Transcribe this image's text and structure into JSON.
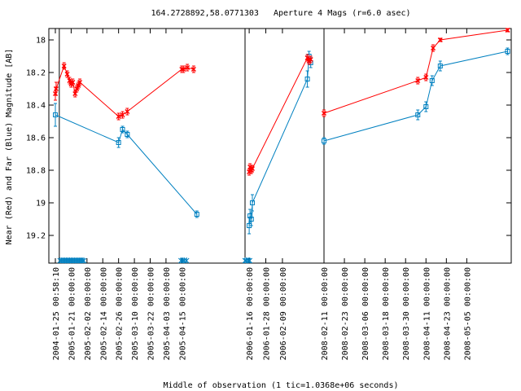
{
  "chart_data": {
    "type": "line",
    "title": "164.2728892,58.0771303   Aperture 4 Mags (r=6.0 asec)",
    "xlabel": "Middle of observation (1 tic=1.0368e+06 seconds)",
    "ylabel": "Near (Red) and Far (Blue) Magnitude [AB]",
    "y_inverted": true,
    "ylim": [
      19.37,
      17.93
    ],
    "y_ticks": [
      18,
      18.2,
      18.4,
      18.6,
      18.8,
      19,
      19.2
    ],
    "grid": false,
    "colors": {
      "near": "#ff0000",
      "far": "#0080c0",
      "frame": "#000000"
    },
    "panels": [
      {
        "xlim": [
          0,
          12
        ],
        "ticks": [
          {
            "x": 0,
            "label": "2004-01-25 00:58:10"
          },
          {
            "x": 1,
            "label": "2005-01-21 00:00:00"
          },
          {
            "x": 2,
            "label": "2005-02-02 00:00:00"
          },
          {
            "x": 3,
            "label": "2005-02-14 00:00:00"
          },
          {
            "x": 4,
            "label": "2005-02-26 00:00:00"
          },
          {
            "x": 5,
            "label": "2005-03-10 00:00:00"
          },
          {
            "x": 6,
            "label": "2005-03-22 00:00:00"
          },
          {
            "x": 7,
            "label": "2005-04-03 00:00:00"
          },
          {
            "x": 8,
            "label": "2005-04-15 00:00:00"
          }
        ],
        "vline": 0.25,
        "near": [
          {
            "x": 0.0,
            "y": 18.33,
            "err": 0.04
          },
          {
            "x": 0.05,
            "y": 18.3,
            "err": 0.04
          },
          {
            "x": 0.55,
            "y": 18.16,
            "err": 0.02
          },
          {
            "x": 0.75,
            "y": 18.21,
            "err": 0.02
          },
          {
            "x": 0.9,
            "y": 18.25,
            "err": 0.02
          },
          {
            "x": 1.0,
            "y": 18.27,
            "err": 0.02
          },
          {
            "x": 1.1,
            "y": 18.26,
            "err": 0.02
          },
          {
            "x": 1.25,
            "y": 18.33,
            "err": 0.02
          },
          {
            "x": 1.35,
            "y": 18.3,
            "err": 0.02
          },
          {
            "x": 1.45,
            "y": 18.28,
            "err": 0.02
          },
          {
            "x": 1.55,
            "y": 18.26,
            "err": 0.02
          },
          {
            "x": 4.0,
            "y": 18.47,
            "err": 0.02
          },
          {
            "x": 4.25,
            "y": 18.46,
            "err": 0.02
          },
          {
            "x": 4.55,
            "y": 18.44,
            "err": 0.02
          },
          {
            "x": 8.0,
            "y": 18.18,
            "err": 0.02
          },
          {
            "x": 8.1,
            "y": 18.18,
            "err": 0.02
          },
          {
            "x": 8.35,
            "y": 18.17,
            "err": 0.02
          },
          {
            "x": 8.75,
            "y": 18.18,
            "err": 0.02
          }
        ],
        "far": [
          {
            "x": 0.0,
            "y": 18.46,
            "err": 0.07
          },
          {
            "x": 4.0,
            "y": 18.63,
            "err": 0.03
          },
          {
            "x": 4.25,
            "y": 18.55,
            "err": 0.02
          },
          {
            "x": 4.55,
            "y": 18.58,
            "err": 0.02
          },
          {
            "x": 8.95,
            "y": 19.07,
            "err": 0.02
          }
        ],
        "markers": [
          0.3,
          0.4,
          0.5,
          0.6,
          0.7,
          0.8,
          0.9,
          1.0,
          1.1,
          1.2,
          1.3,
          1.4,
          1.5,
          1.6,
          1.7,
          1.8,
          7.95,
          8.05,
          8.15,
          8.3
        ]
      },
      {
        "xlim": [
          0,
          4.75
        ],
        "ticks": [
          {
            "x": 0.25,
            "label": "2006-01-16 00:00:00"
          },
          {
            "x": 1.25,
            "label": "2006-01-28 00:00:00"
          },
          {
            "x": 2.25,
            "label": "2006-02-09 00:00:00"
          }
        ],
        "vline": null,
        "near": [
          {
            "x": 0.25,
            "y": 18.81,
            "err": 0.02
          },
          {
            "x": 0.3,
            "y": 18.78,
            "err": 0.02
          },
          {
            "x": 0.38,
            "y": 18.8,
            "err": 0.02
          },
          {
            "x": 0.44,
            "y": 18.79,
            "err": 0.02
          },
          {
            "x": 3.75,
            "y": 18.11,
            "err": 0.02
          },
          {
            "x": 3.85,
            "y": 18.13,
            "err": 0.02
          },
          {
            "x": 3.95,
            "y": 18.12,
            "err": 0.02
          }
        ],
        "far": [
          {
            "x": 0.25,
            "y": 19.14,
            "err": 0.05
          },
          {
            "x": 0.3,
            "y": 19.08,
            "err": 0.04
          },
          {
            "x": 0.38,
            "y": 19.1,
            "err": 0.04
          },
          {
            "x": 0.44,
            "y": 19.0,
            "err": 0.05
          },
          {
            "x": 3.75,
            "y": 18.24,
            "err": 0.05
          },
          {
            "x": 3.85,
            "y": 18.1,
            "err": 0.03
          },
          {
            "x": 3.95,
            "y": 18.14,
            "err": 0.03
          }
        ],
        "markers": [
          0.0,
          0.08,
          0.2,
          0.28
        ]
      },
      {
        "xlim": [
          0,
          9.1
        ],
        "ticks": [
          {
            "x": 0.0,
            "label": "2008-02-11 00:00:00"
          },
          {
            "x": 1.0,
            "label": "2008-02-23 00:00:00"
          },
          {
            "x": 2.0,
            "label": "2008-03-06 00:00:00"
          },
          {
            "x": 3.0,
            "label": "2008-03-18 00:00:00"
          },
          {
            "x": 4.0,
            "label": "2008-03-30 00:00:00"
          },
          {
            "x": 5.0,
            "label": "2008-04-11 00:00:00"
          },
          {
            "x": 6.0,
            "label": "2008-04-23 00:00:00"
          },
          {
            "x": 7.0,
            "label": "2008-05-05 00:00:00"
          }
        ],
        "vline": null,
        "near": [
          {
            "x": 0.0,
            "y": 18.45,
            "err": 0.02
          },
          {
            "x": 4.6,
            "y": 18.25,
            "err": 0.02
          },
          {
            "x": 5.0,
            "y": 18.23,
            "err": 0.02
          },
          {
            "x": 5.35,
            "y": 18.05,
            "err": 0.02
          },
          {
            "x": 5.7,
            "y": 18.0,
            "err": 0.01
          },
          {
            "x": 9.0,
            "y": 17.94,
            "err": 0.01
          }
        ],
        "far": [
          {
            "x": 0.0,
            "y": 18.62,
            "err": 0.02
          },
          {
            "x": 4.6,
            "y": 18.46,
            "err": 0.03
          },
          {
            "x": 5.0,
            "y": 18.41,
            "err": 0.03
          },
          {
            "x": 5.3,
            "y": 18.25,
            "err": 0.03
          },
          {
            "x": 5.7,
            "y": 18.16,
            "err": 0.03
          },
          {
            "x": 9.0,
            "y": 18.07,
            "err": 0.02
          }
        ],
        "markers": []
      }
    ]
  }
}
